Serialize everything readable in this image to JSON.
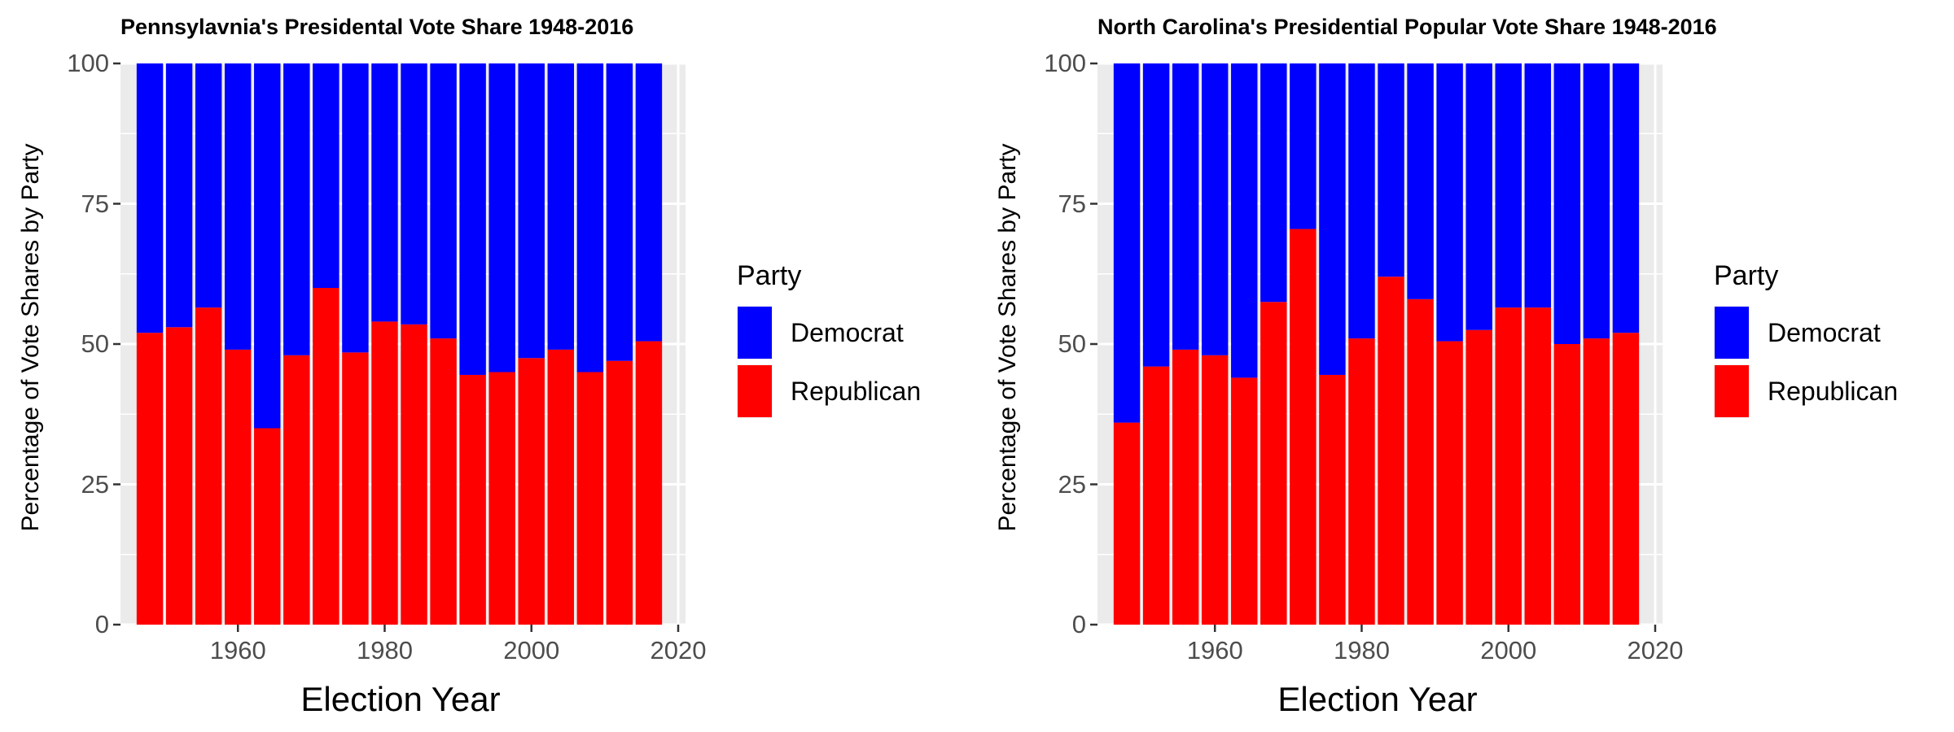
{
  "charts": [
    {
      "title": "Pennsylavnia's Presidental Vote Share 1948-2016"
    },
    {
      "title": "North Carolina's Presidential Popular Vote Share 1948-2016"
    }
  ],
  "legend": {
    "title": "Party",
    "items": [
      {
        "label": "Democrat",
        "color": "#0000ff"
      },
      {
        "label": "Republican",
        "color": "#ff0000"
      }
    ]
  },
  "chart_data": [
    {
      "type": "bar",
      "stacked": true,
      "title": "Pennsylavnia's Presidental Vote Share 1948-2016",
      "xlabel": "Election Year",
      "ylabel": "Percentage of Vote Shares by Party",
      "x_ticks": [
        1960,
        1980,
        2000,
        2020
      ],
      "y_ticks": [
        0,
        25,
        50,
        75,
        100
      ],
      "xlim": [
        1944,
        2021
      ],
      "ylim": [
        0,
        100
      ],
      "categories": [
        1948,
        1952,
        1956,
        1960,
        1964,
        1968,
        1972,
        1976,
        1980,
        1984,
        1988,
        1992,
        1996,
        2000,
        2004,
        2008,
        2012,
        2016
      ],
      "series": [
        {
          "name": "Republican",
          "color": "#ff0000",
          "values": [
            52,
            53,
            56.5,
            49,
            35,
            48,
            60,
            48.5,
            54,
            53.5,
            51,
            44.5,
            45,
            47.5,
            49,
            45,
            47,
            50.5
          ]
        },
        {
          "name": "Democrat",
          "color": "#0000ff",
          "values": [
            48,
            47,
            43.5,
            51,
            65,
            52,
            40,
            51.5,
            46,
            46.5,
            49,
            55.5,
            55,
            52.5,
            51,
            55,
            53,
            49.5
          ]
        }
      ],
      "legend_position": "right",
      "grid": true
    },
    {
      "type": "bar",
      "stacked": true,
      "title": "North Carolina's Presidential Popular Vote Share 1948-2016",
      "xlabel": "Election Year",
      "ylabel": "Percentage of Vote Shares by Party",
      "x_ticks": [
        1960,
        1980,
        2000,
        2020
      ],
      "y_ticks": [
        0,
        25,
        50,
        75,
        100
      ],
      "xlim": [
        1944,
        2021
      ],
      "ylim": [
        0,
        100
      ],
      "categories": [
        1948,
        1952,
        1956,
        1960,
        1964,
        1968,
        1972,
        1976,
        1980,
        1984,
        1988,
        1992,
        1996,
        2000,
        2004,
        2008,
        2012,
        2016
      ],
      "series": [
        {
          "name": "Republican",
          "color": "#ff0000",
          "values": [
            36,
            46,
            49,
            48,
            44,
            57.5,
            70.5,
            44.5,
            51,
            62,
            58,
            50.5,
            52.5,
            56.5,
            56.5,
            50,
            51,
            52
          ]
        },
        {
          "name": "Democrat",
          "color": "#0000ff",
          "values": [
            64,
            54,
            51,
            52,
            56,
            42.5,
            29.5,
            55.5,
            49,
            38,
            42,
            49.5,
            47.5,
            43.5,
            43.5,
            50,
            49,
            48
          ]
        }
      ],
      "legend_position": "right",
      "grid": true
    }
  ]
}
